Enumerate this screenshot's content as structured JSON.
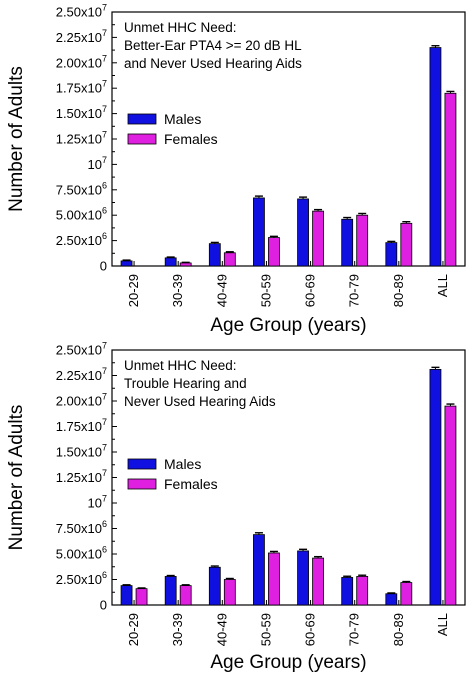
{
  "colors": {
    "males": "#1010e0",
    "females": "#e020e0",
    "axis": "#000000"
  },
  "chart_data": [
    {
      "type": "bar",
      "annotation_lines": [
        "Unmet HHC Need:",
        "Better-Ear PTA4 >= 20 dB HL",
        "and Never Used Hearing Aids"
      ],
      "xlabel": "Age Group (years)",
      "ylabel": "Number of Adults",
      "ylim": [
        0,
        25000000
      ],
      "yticks": [
        {
          "value": 0,
          "label": "0"
        },
        {
          "value": 2500000,
          "label": "2.50x10^6"
        },
        {
          "value": 5000000,
          "label": "5.00x10^6"
        },
        {
          "value": 7500000,
          "label": "7.50x10^6"
        },
        {
          "value": 10000000,
          "label": "10^7"
        },
        {
          "value": 12500000,
          "label": "1.25x10^7"
        },
        {
          "value": 15000000,
          "label": "1.50x10^7"
        },
        {
          "value": 17500000,
          "label": "1.75x10^7"
        },
        {
          "value": 20000000,
          "label": "2.00x10^7"
        },
        {
          "value": 22500000,
          "label": "2.25x10^7"
        },
        {
          "value": 25000000,
          "label": "2.50x10^7"
        }
      ],
      "categories": [
        "20-29",
        "30-39",
        "40-49",
        "50-59",
        "60-69",
        "70-79",
        "80-89",
        "ALL"
      ],
      "series": [
        {
          "name": "Males",
          "values": [
            500000,
            800000,
            2200000,
            6700000,
            6600000,
            4600000,
            2300000,
            21500000
          ],
          "errors": [
            80000,
            80000,
            120000,
            180000,
            180000,
            170000,
            120000,
            180000
          ]
        },
        {
          "name": "Females",
          "values": [
            0,
            300000,
            1300000,
            2800000,
            5400000,
            5000000,
            4200000,
            17000000
          ],
          "errors": [
            0,
            60000,
            100000,
            120000,
            150000,
            170000,
            160000,
            180000
          ]
        }
      ],
      "legend_position": "middle-left"
    },
    {
      "type": "bar",
      "annotation_lines": [
        "Unmet HHC Need:",
        "Trouble Hearing and",
        "Never Used Hearing Aids"
      ],
      "xlabel": "Age Group (years)",
      "ylabel": "Number of Adults",
      "ylim": [
        0,
        25000000
      ],
      "yticks": [
        {
          "value": 0,
          "label": "0"
        },
        {
          "value": 2500000,
          "label": "2.50x10^6"
        },
        {
          "value": 5000000,
          "label": "5.00x10^6"
        },
        {
          "value": 7500000,
          "label": "7.50x10^6"
        },
        {
          "value": 10000000,
          "label": "10^7"
        },
        {
          "value": 12500000,
          "label": "1.25x10^7"
        },
        {
          "value": 15000000,
          "label": "1.50x10^7"
        },
        {
          "value": 17500000,
          "label": "1.75x10^7"
        },
        {
          "value": 20000000,
          "label": "2.00x10^7"
        },
        {
          "value": 22500000,
          "label": "2.25x10^7"
        },
        {
          "value": 25000000,
          "label": "2.50x10^7"
        }
      ],
      "categories": [
        "20-29",
        "30-39",
        "40-49",
        "50-59",
        "60-69",
        "70-79",
        "80-89",
        "ALL"
      ],
      "series": [
        {
          "name": "Males",
          "values": [
            1900000,
            2800000,
            3700000,
            6900000,
            5300000,
            2700000,
            1100000,
            23100000
          ],
          "errors": [
            80000,
            90000,
            120000,
            180000,
            160000,
            120000,
            80000,
            200000
          ]
        },
        {
          "name": "Females",
          "values": [
            1600000,
            1900000,
            2500000,
            5100000,
            4600000,
            2800000,
            2200000,
            19500000
          ],
          "errors": [
            70000,
            80000,
            100000,
            150000,
            140000,
            120000,
            100000,
            200000
          ]
        }
      ],
      "legend_position": "middle-left"
    }
  ]
}
